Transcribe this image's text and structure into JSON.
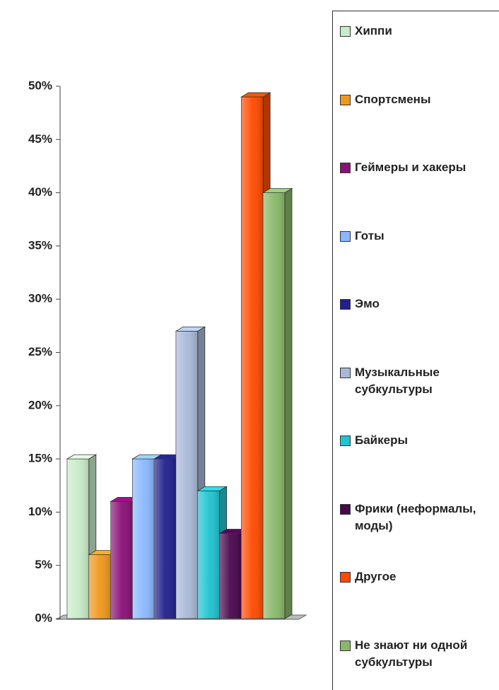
{
  "chart_data": {
    "type": "bar",
    "categories": [
      "Хиппи",
      "Спортсмены",
      "Геймеры и хакеры",
      "Готы",
      "Эмо",
      "Музыкальные субкультуры",
      "Байкеры",
      "Фрики (неформалы, моды)",
      "Другое",
      "Не знают ни одной субкультуры"
    ],
    "values": [
      15,
      6,
      11,
      15,
      15,
      27,
      12,
      8,
      49,
      40
    ],
    "colors": [
      "#c8ecc8",
      "#f0981c",
      "#8a1078",
      "#8ab8ff",
      "#20208c",
      "#a8b8d8",
      "#20c4d0",
      "#48084c",
      "#ff4a00",
      "#88b868"
    ],
    "ylim": [
      0,
      50
    ],
    "yticks": [
      {
        "value": 0,
        "label": "0%"
      },
      {
        "value": 5,
        "label": "5%"
      },
      {
        "value": 10,
        "label": "10%"
      },
      {
        "value": 15,
        "label": "15%"
      },
      {
        "value": 20,
        "label": "20%"
      },
      {
        "value": 25,
        "label": "25%"
      },
      {
        "value": 30,
        "label": "30%"
      },
      {
        "value": 35,
        "label": "35%"
      },
      {
        "value": 40,
        "label": "40%"
      },
      {
        "value": 45,
        "label": "45%"
      },
      {
        "value": 50,
        "label": "50%"
      }
    ],
    "legend": "right"
  }
}
